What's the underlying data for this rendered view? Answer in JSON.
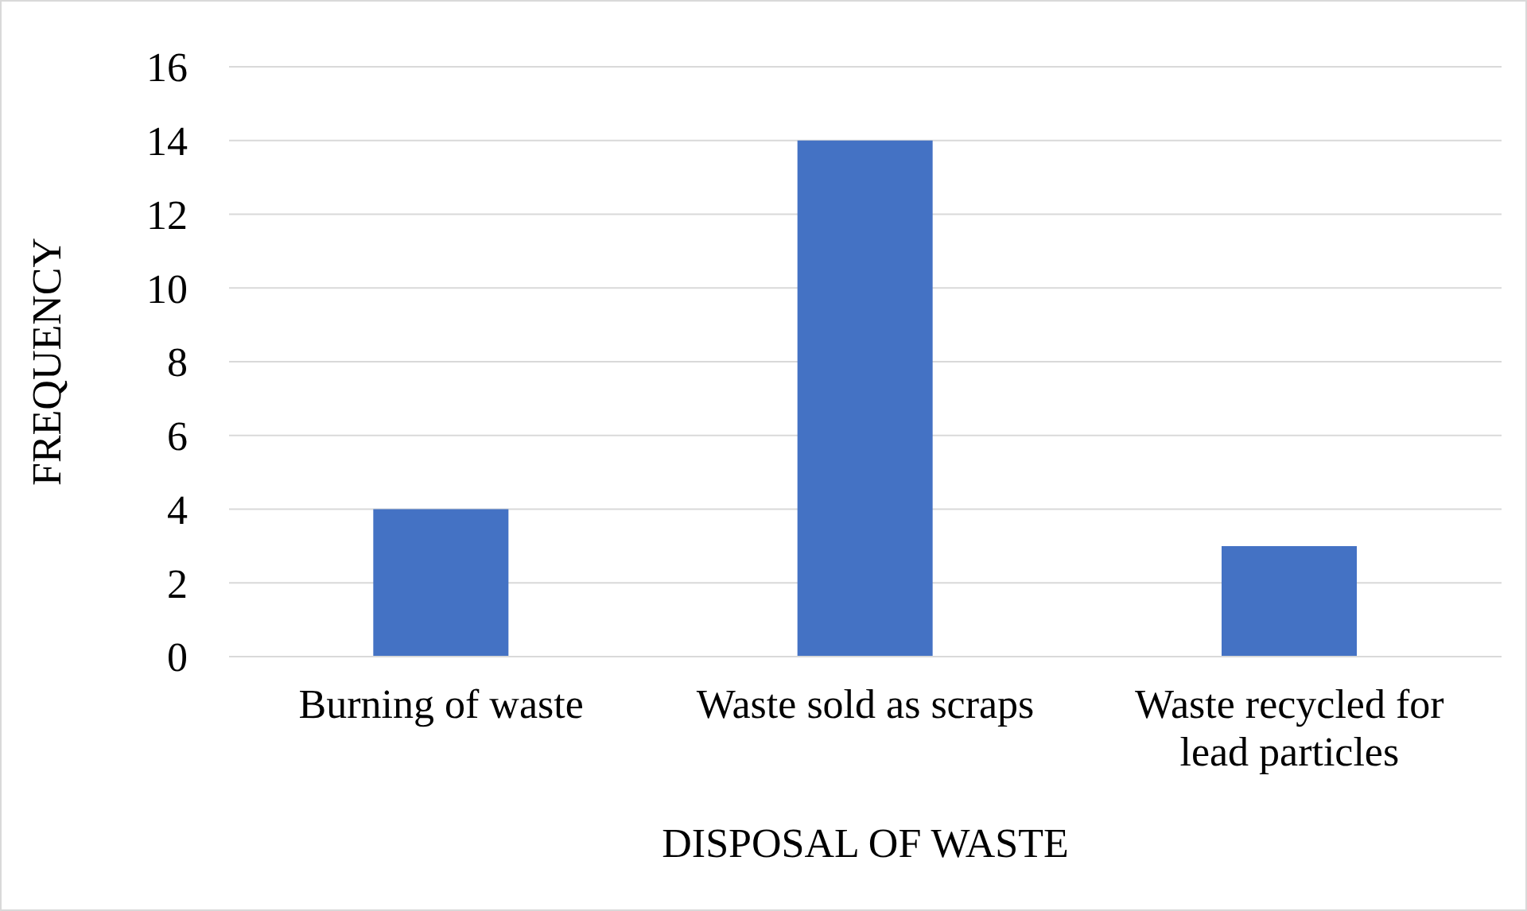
{
  "chart_data": {
    "type": "bar",
    "xlabel": "DISPOSAL OF WASTE",
    "ylabel": "FREQUENCY",
    "categories": [
      "Burning of waste",
      "Waste sold as scraps",
      "Waste recycled for lead particles"
    ],
    "values": [
      4,
      14,
      3
    ],
    "color": "#4472c4",
    "ylim": [
      0,
      16
    ],
    "yticks": [
      0,
      2,
      4,
      6,
      8,
      10,
      12,
      14,
      16
    ],
    "grid": "y"
  }
}
